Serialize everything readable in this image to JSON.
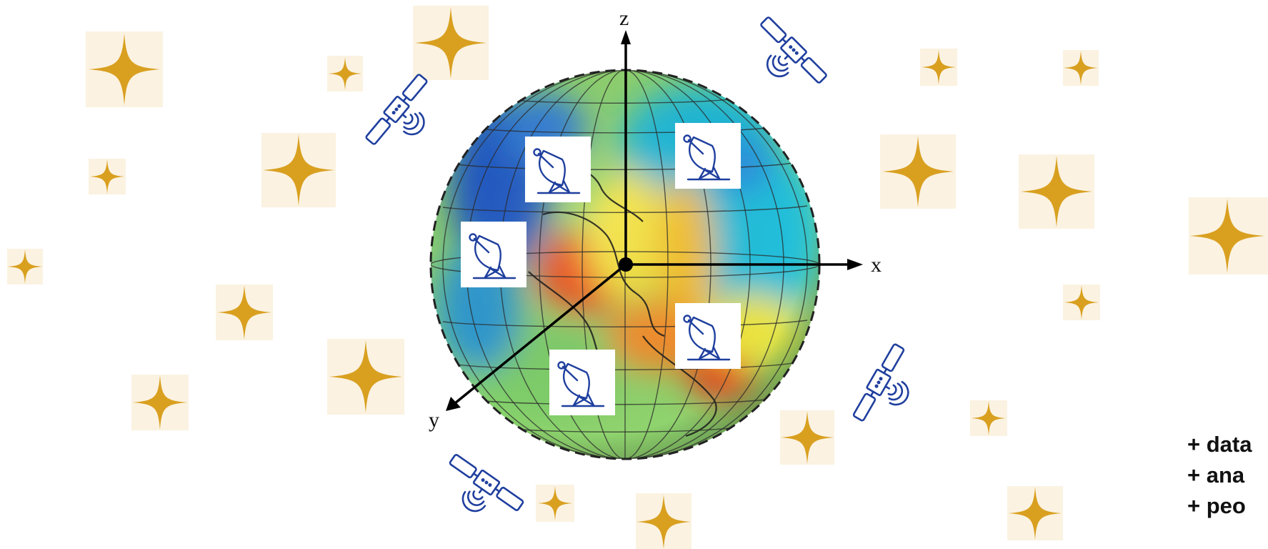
{
  "axes": {
    "x": "x",
    "y": "y",
    "z": "z"
  },
  "side_notes": [
    "+ data",
    "+ ana",
    "+ peo"
  ],
  "colors": {
    "star": "#D9A020",
    "star_tile": "#FBF2E1",
    "icon_stroke": "#1F3F9E",
    "axis": "#000000"
  },
  "icons": {
    "satellites": [
      "satellite-icon",
      "satellite-icon",
      "satellite-icon",
      "satellite-icon"
    ],
    "ground_stations": [
      "radar-dish-icon",
      "radar-dish-icon",
      "radar-dish-icon",
      "radar-dish-icon",
      "radar-dish-icon"
    ],
    "stars": "sparkle-star-icon"
  }
}
